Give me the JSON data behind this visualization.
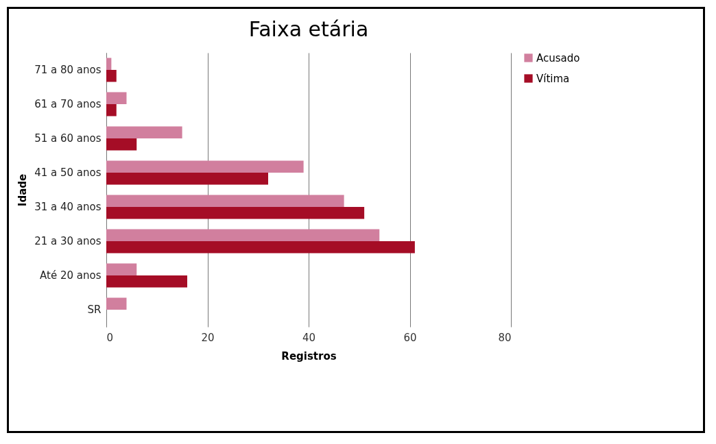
{
  "chart_data": {
    "type": "bar",
    "orientation": "horizontal",
    "title": "Faixa etária",
    "xlabel": "Registros",
    "ylabel": "Idade",
    "categories": [
      "71 a 80 anos",
      "61 a 70 anos",
      "51 a 60 anos",
      "41 a 50 anos",
      "31 a 40  anos",
      "21 a 30 anos",
      "Até 20 anos",
      "SR"
    ],
    "series": [
      {
        "name": "Acusado",
        "color": "#d17f9e",
        "values": [
          1,
          4,
          15,
          39,
          47,
          54,
          6,
          4
        ]
      },
      {
        "name": "Vítima",
        "color": "#a50d26",
        "values": [
          2,
          2,
          6,
          32,
          51,
          61,
          16,
          null
        ]
      }
    ],
    "xlim": [
      0,
      80
    ],
    "xticks": [
      0,
      20,
      40,
      60,
      80
    ],
    "grid": "x",
    "legend": "right"
  }
}
